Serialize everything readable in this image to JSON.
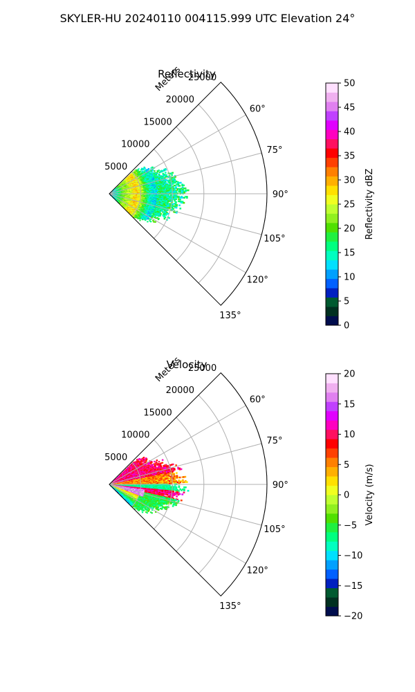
{
  "figure": {
    "suptitle": "SKYLER-HU  20240110  004115.999 UTC Elevation 24°"
  },
  "chart_data": [
    {
      "type": "polar-ppi",
      "title": "Reflectivity",
      "range_label": "Meters",
      "range_ticks": [
        5000,
        10000,
        15000,
        20000,
        25000
      ],
      "range_tick_labels": [
        "5000",
        "10000",
        "15000",
        "20000",
        "25000"
      ],
      "range_max": 25000,
      "azimuth_range_deg": [
        45,
        135
      ],
      "azimuth_ticks": [
        60,
        75,
        90,
        105,
        120,
        135
      ],
      "azimuth_tick_labels": [
        "60°",
        "75°",
        "90°",
        "105°",
        "120°",
        "135°"
      ],
      "grid": true,
      "data_extent_m": 11500,
      "colorbar": {
        "label": "Reflectivity dBZ",
        "min": 0,
        "max": 50,
        "ticks": [
          0,
          5,
          10,
          15,
          20,
          25,
          30,
          35,
          40,
          45,
          50
        ],
        "tick_labels": [
          "0",
          "5",
          "10",
          "15",
          "20",
          "25",
          "30",
          "35",
          "40",
          "45",
          "50"
        ],
        "colors": [
          "#000d4d",
          "#003020",
          "#005a30",
          "#0020c0",
          "#0060ff",
          "#00a0ff",
          "#00e0ff",
          "#00ffc0",
          "#00ff80",
          "#20f040",
          "#50e000",
          "#90f020",
          "#c0ff30",
          "#f0ff20",
          "#ffe000",
          "#ffb000",
          "#ff8000",
          "#ff4000",
          "#ff0000",
          "#ff1060",
          "#ff00c0",
          "#e000ff",
          "#c040ff",
          "#e080f0",
          "#f0b0f0",
          "#ffe0ff"
        ]
      }
    },
    {
      "type": "polar-ppi",
      "title": "Velocity",
      "range_label": "Meters",
      "range_ticks": [
        5000,
        10000,
        15000,
        20000,
        25000
      ],
      "range_tick_labels": [
        "5000",
        "10000",
        "15000",
        "20000",
        "25000"
      ],
      "range_max": 25000,
      "azimuth_range_deg": [
        45,
        135
      ],
      "azimuth_ticks": [
        60,
        75,
        90,
        105,
        120,
        135
      ],
      "azimuth_tick_labels": [
        "60°",
        "75°",
        "90°",
        "105°",
        "120°",
        "135°"
      ],
      "grid": true,
      "data_extent_m": 11500,
      "colorbar": {
        "label": "Velocity (m/s)",
        "min": -20,
        "max": 20,
        "ticks": [
          -20,
          -15,
          -10,
          -5,
          0,
          5,
          10,
          15,
          20
        ],
        "tick_labels": [
          "−20",
          "−15",
          "−10",
          "−5",
          "0",
          "5",
          "10",
          "15",
          "20"
        ],
        "colors": [
          "#000d4d",
          "#003020",
          "#005a30",
          "#0020c0",
          "#0060ff",
          "#00a0ff",
          "#00e0ff",
          "#00ffc0",
          "#00ff80",
          "#20f040",
          "#50e000",
          "#90f020",
          "#c0ff30",
          "#f0ff20",
          "#ffe000",
          "#ffb000",
          "#ff8000",
          "#ff4000",
          "#ff0000",
          "#ff1060",
          "#ff00c0",
          "#e000ff",
          "#c040ff",
          "#e080f0",
          "#f0b0f0",
          "#ffe0ff"
        ]
      }
    }
  ]
}
